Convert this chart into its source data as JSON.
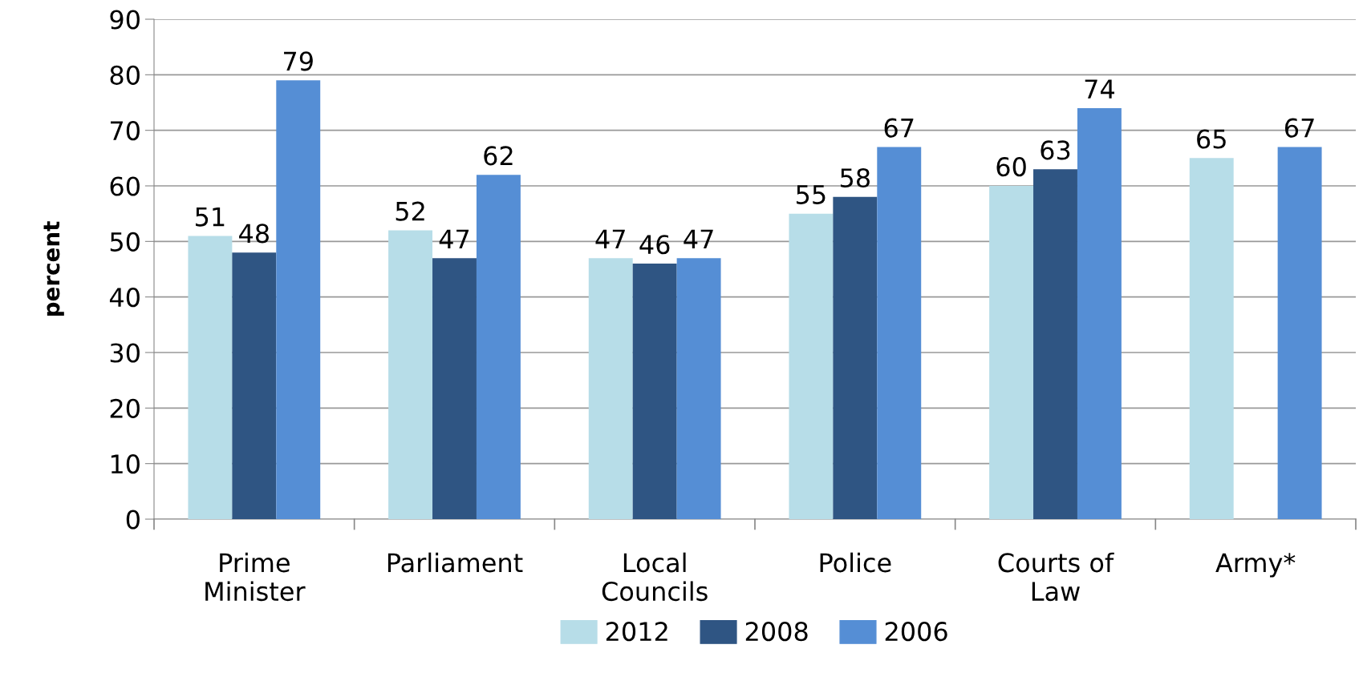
{
  "chart_data": {
    "type": "bar",
    "ylabel": "percent",
    "categories": [
      "Prime\nMinister",
      "Parliament",
      "Local\nCouncils",
      "Police",
      "Courts of\nLaw",
      "Army*"
    ],
    "series": [
      {
        "name": "2012",
        "color": "#b7dde8",
        "values": [
          51,
          52,
          47,
          55,
          60,
          65
        ]
      },
      {
        "name": "2008",
        "color": "#2f5583",
        "values": [
          48,
          47,
          46,
          58,
          63,
          null
        ]
      },
      {
        "name": "2006",
        "color": "#558ed5",
        "values": [
          79,
          62,
          47,
          67,
          74,
          67
        ]
      }
    ],
    "ylim": [
      0,
      90
    ],
    "yticks": [
      0,
      10,
      20,
      30,
      40,
      50,
      60,
      70,
      80,
      90
    ],
    "grid": "y",
    "legend": "bottom",
    "data_labels": true
  }
}
